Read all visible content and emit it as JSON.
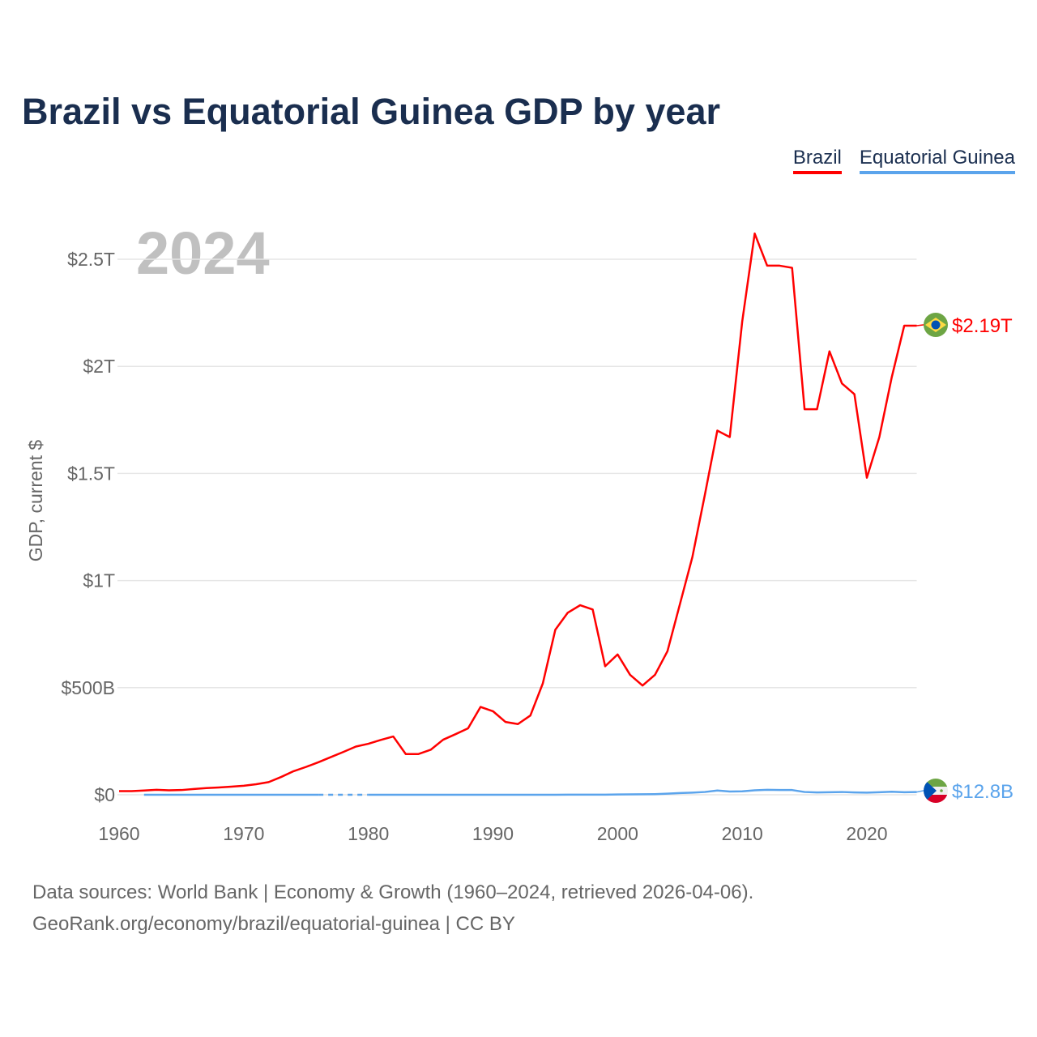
{
  "chart_data": {
    "type": "line",
    "title": "Brazil vs Equatorial Guinea GDP by year",
    "ylabel": "GDP, current $",
    "xlabel": "",
    "year_watermark": "2024",
    "xlim": [
      1960,
      2024
    ],
    "ylim": [
      0,
      2.7
    ],
    "y_unit": "trillions USD",
    "grid": true,
    "legend_position": "top-right",
    "x_ticks": [
      1960,
      1970,
      1980,
      1990,
      2000,
      2010,
      2020
    ],
    "x_tick_labels": [
      "1960",
      "1970",
      "1980",
      "1990",
      "2000",
      "2010",
      "2020"
    ],
    "y_ticks": [
      0,
      0.5,
      1,
      1.5,
      2,
      2.5
    ],
    "y_tick_labels": [
      "$0",
      "$500B",
      "$1T",
      "$1.5T",
      "$2T",
      "$2.5T"
    ],
    "series": [
      {
        "name": "Brazil",
        "color": "#ff0000",
        "end_label": "$2.19T",
        "flag": "brazil-flag",
        "x_start": 1960,
        "values": [
          0.017,
          0.017,
          0.02,
          0.023,
          0.021,
          0.022,
          0.027,
          0.031,
          0.034,
          0.038,
          0.042,
          0.049,
          0.059,
          0.083,
          0.11,
          0.13,
          0.152,
          0.176,
          0.2,
          0.225,
          0.238,
          0.256,
          0.272,
          0.19,
          0.19,
          0.21,
          0.257,
          0.283,
          0.31,
          0.41,
          0.39,
          0.34,
          0.33,
          0.37,
          0.52,
          0.77,
          0.85,
          0.885,
          0.865,
          0.6,
          0.655,
          0.56,
          0.51,
          0.56,
          0.67,
          0.89,
          1.11,
          1.4,
          1.7,
          1.67,
          2.21,
          2.62,
          2.47,
          2.47,
          2.46,
          1.8,
          1.8,
          2.07,
          1.92,
          1.87,
          1.48,
          1.67,
          1.95,
          2.19,
          2.19
        ]
      },
      {
        "name": "Equatorial Guinea",
        "color": "#5ba4ec",
        "end_label": "$12.8B",
        "flag": "equatorial-guinea-flag",
        "x_start": 1960,
        "values": [
          null,
          null,
          0.0001,
          0.0001,
          0.0001,
          0.0001,
          0.0001,
          0.0001,
          0.0001,
          0.0001,
          0.0001,
          0.0001,
          0.0001,
          0.0001,
          0.0001,
          0.0001,
          0.0001,
          null,
          null,
          null,
          0.0001,
          0.0001,
          0.0001,
          0.0001,
          0.0001,
          0.0001,
          0.0001,
          0.0001,
          0.0001,
          0.0001,
          0.0001,
          0.0001,
          0.0002,
          0.0002,
          0.0001,
          0.0002,
          0.0003,
          0.0005,
          0.0004,
          0.0006,
          0.0012,
          0.0017,
          0.0022,
          0.003,
          0.005,
          0.008,
          0.01,
          0.013,
          0.02,
          0.015,
          0.016,
          0.021,
          0.023,
          0.022,
          0.022,
          0.013,
          0.011,
          0.012,
          0.013,
          0.011,
          0.01,
          0.012,
          0.014,
          0.012,
          0.0128
        ]
      }
    ]
  },
  "footer": {
    "line1": "Data sources: World Bank | Economy & Growth (1960–2024, retrieved 2026-04-06).",
    "line2": "GeoRank.org/economy/brazil/equatorial-guinea | CC BY"
  }
}
